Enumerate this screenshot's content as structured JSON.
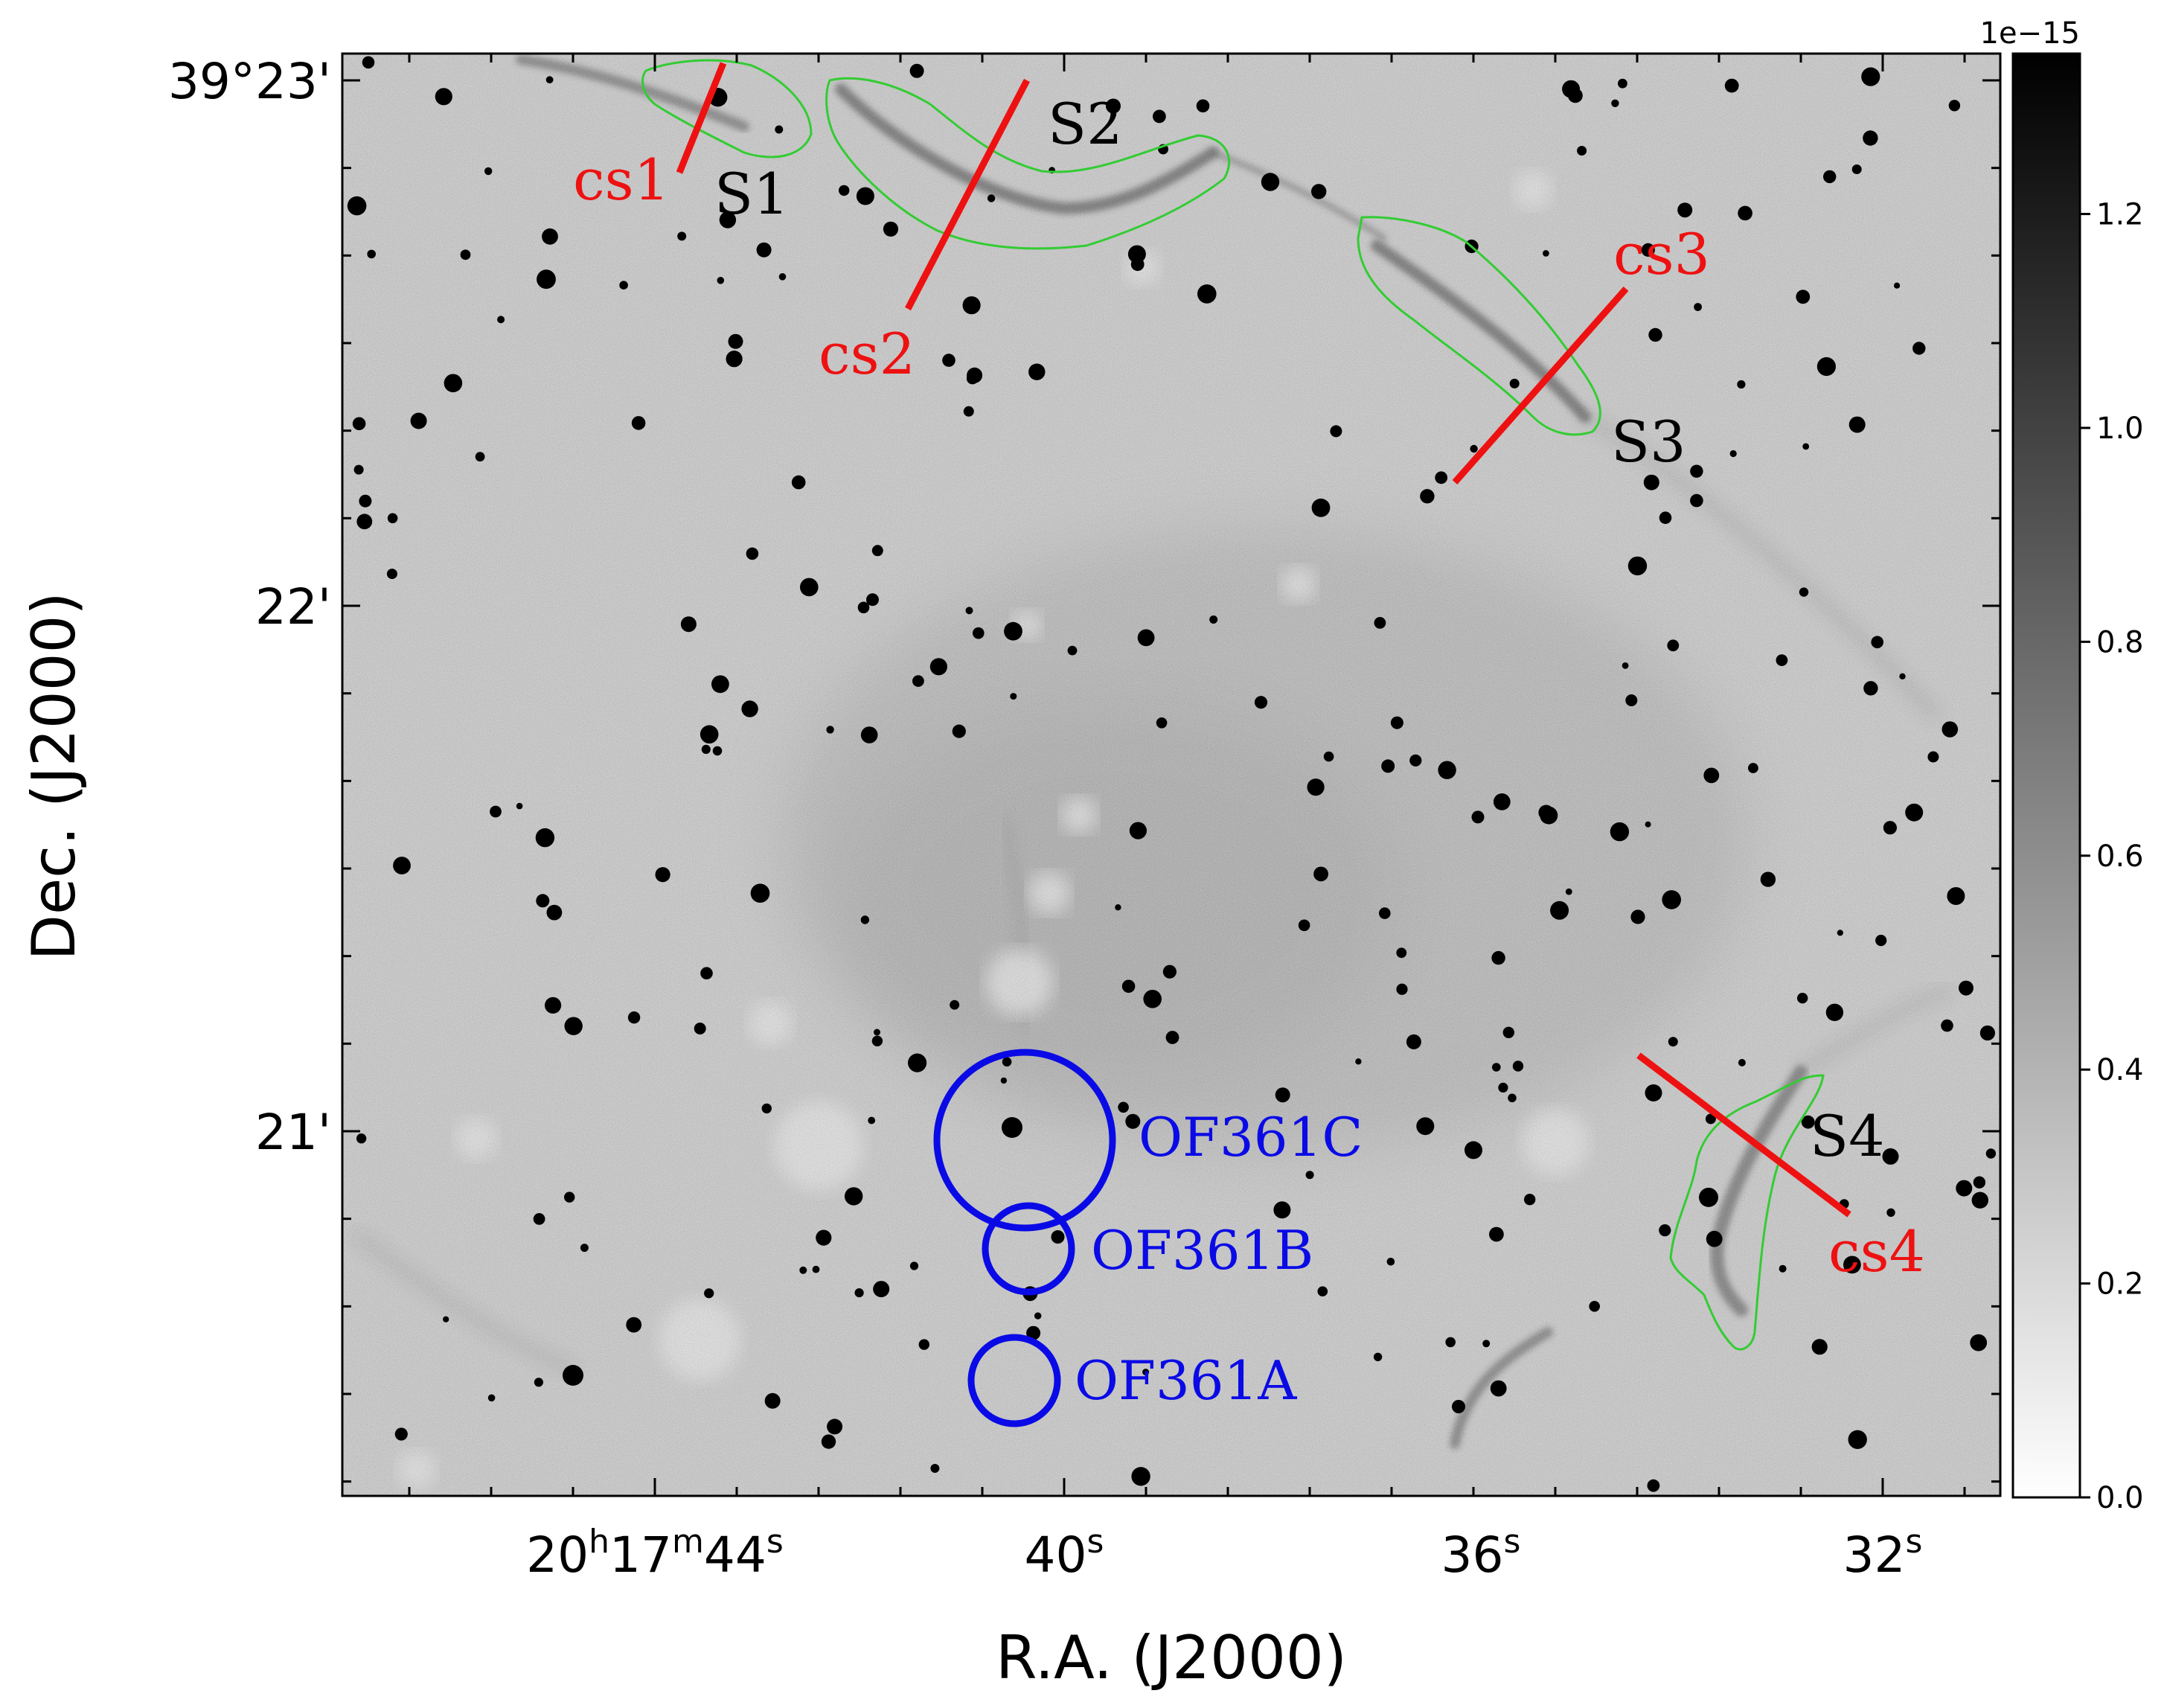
{
  "figure": {
    "axes": {
      "xlabel": "R.A. (J2000)",
      "ylabel": "Dec. (J2000)",
      "x_ticks": [
        {
          "label": "20h17m44s"
        },
        {
          "label": "40s"
        },
        {
          "label": "36s"
        },
        {
          "label": "32s"
        }
      ],
      "y_ticks": [
        {
          "label": "39°23'"
        },
        {
          "label": "22'"
        },
        {
          "label": "21'"
        }
      ]
    },
    "colorbar": {
      "scale_label": "1e−15",
      "range": [
        0.0,
        1.35
      ],
      "colormap": "gray_r",
      "ticks": [
        "0.0",
        "0.2",
        "0.4",
        "0.6",
        "0.8",
        "1.0",
        "1.2"
      ]
    },
    "regions": [
      {
        "label": "S1",
        "outline_color": "#33cc33",
        "text_color": "#000000"
      },
      {
        "label": "S2",
        "outline_color": "#33cc33",
        "text_color": "#000000"
      },
      {
        "label": "S3",
        "outline_color": "#33cc33",
        "text_color": "#000000"
      },
      {
        "label": "S4",
        "outline_color": "#33cc33",
        "text_color": "#000000"
      }
    ],
    "cuts": [
      {
        "label": "cs1",
        "color": "#ee1111"
      },
      {
        "label": "cs2",
        "color": "#ee1111"
      },
      {
        "label": "cs3",
        "color": "#ee1111"
      },
      {
        "label": "cs4",
        "color": "#ee1111"
      }
    ],
    "sources": [
      {
        "label": "OF361C",
        "color": "#0a0ae6"
      },
      {
        "label": "OF361B",
        "color": "#0a0ae6"
      },
      {
        "label": "OF361A",
        "color": "#0a0ae6"
      }
    ]
  }
}
